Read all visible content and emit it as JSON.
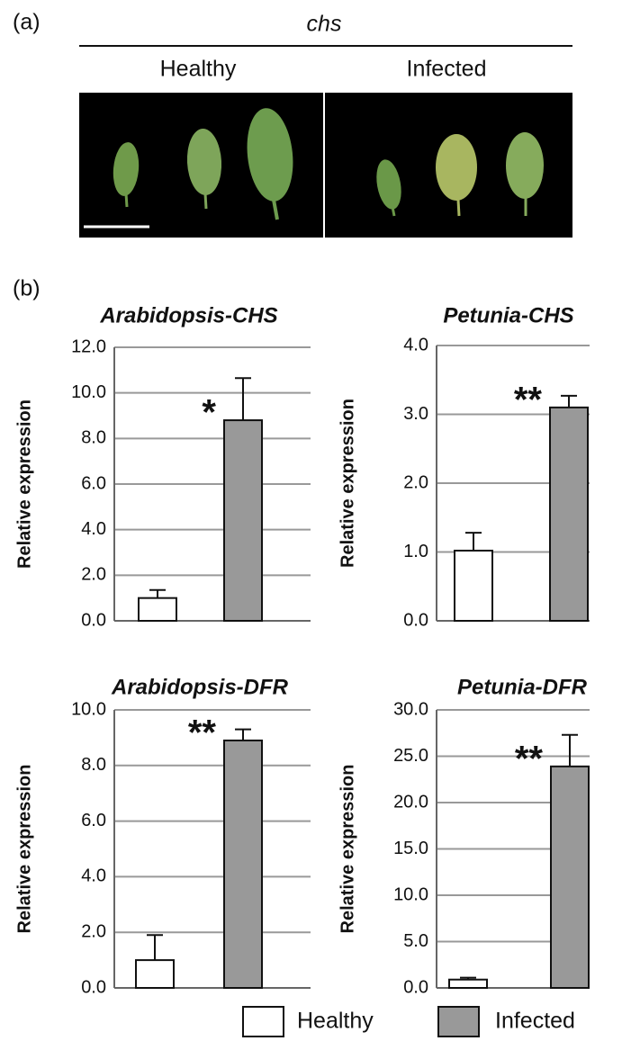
{
  "panel_a": {
    "label": "(a)",
    "genotype": "chs",
    "conditions": [
      "Healthy",
      "Infected"
    ]
  },
  "panel_b": {
    "label": "(b)"
  },
  "chart_data": [
    {
      "type": "bar",
      "title": "Arabidopsis-CHS",
      "y_label": "Relative expression",
      "ylim": [
        0,
        12
      ],
      "yticks": [
        {
          "value": 0,
          "label": "0.0"
        },
        {
          "value": 2,
          "label": "2.0"
        },
        {
          "value": 4,
          "label": "4.0"
        },
        {
          "value": 6,
          "label": "6.0"
        },
        {
          "value": 8,
          "label": "8.0"
        },
        {
          "value": 10,
          "label": "10.0"
        },
        {
          "value": 12,
          "label": "12.0"
        }
      ],
      "grid": true,
      "significance": "*",
      "series": [
        {
          "name": "Healthy",
          "color": "#ffffff",
          "values": [
            1.0
          ],
          "errors": [
            0.35
          ]
        },
        {
          "name": "Infected",
          "color": "#999999",
          "values": [
            8.8
          ],
          "errors": [
            1.85
          ]
        }
      ]
    },
    {
      "type": "bar",
      "title": "Petunia-CHS",
      "y_label": "Relative expression",
      "ylim": [
        0,
        4
      ],
      "yticks": [
        {
          "value": 0,
          "label": "0.0"
        },
        {
          "value": 1,
          "label": "1.0"
        },
        {
          "value": 2,
          "label": "2.0"
        },
        {
          "value": 3,
          "label": "3.0"
        },
        {
          "value": 4,
          "label": "4.0"
        }
      ],
      "grid": true,
      "significance": "**",
      "series": [
        {
          "name": "Healthy",
          "color": "#ffffff",
          "values": [
            1.02
          ],
          "errors": [
            0.26
          ]
        },
        {
          "name": "Infected",
          "color": "#999999",
          "values": [
            3.1
          ],
          "errors": [
            0.17
          ]
        }
      ]
    },
    {
      "type": "bar",
      "title": "Arabidopsis-DFR",
      "y_label": "Relative expression",
      "ylim": [
        0,
        10
      ],
      "yticks": [
        {
          "value": 0,
          "label": "0.0"
        },
        {
          "value": 2,
          "label": "2.0"
        },
        {
          "value": 4,
          "label": "4.0"
        },
        {
          "value": 6,
          "label": "6.0"
        },
        {
          "value": 8,
          "label": "8.0"
        },
        {
          "value": 10,
          "label": "10.0"
        }
      ],
      "grid": true,
      "significance": "**",
      "series": [
        {
          "name": "Healthy",
          "color": "#ffffff",
          "values": [
            1.0
          ],
          "errors": [
            0.9
          ]
        },
        {
          "name": "Infected",
          "color": "#999999",
          "values": [
            8.9
          ],
          "errors": [
            0.4
          ]
        }
      ]
    },
    {
      "type": "bar",
      "title": "Petunia-DFR",
      "y_label": "Relative expression",
      "ylim": [
        0,
        30
      ],
      "yticks": [
        {
          "value": 0,
          "label": "0.0"
        },
        {
          "value": 5,
          "label": "5.0"
        },
        {
          "value": 10,
          "label": "10.0"
        },
        {
          "value": 15,
          "label": "15.0"
        },
        {
          "value": 20,
          "label": "20.0"
        },
        {
          "value": 25,
          "label": "25.0"
        },
        {
          "value": 30,
          "label": "30.0"
        }
      ],
      "grid": true,
      "significance": "**",
      "series": [
        {
          "name": "Healthy",
          "color": "#ffffff",
          "values": [
            0.9
          ],
          "errors": [
            0.2
          ]
        },
        {
          "name": "Infected",
          "color": "#999999",
          "values": [
            23.9
          ],
          "errors": [
            3.4
          ]
        }
      ]
    }
  ]
}
